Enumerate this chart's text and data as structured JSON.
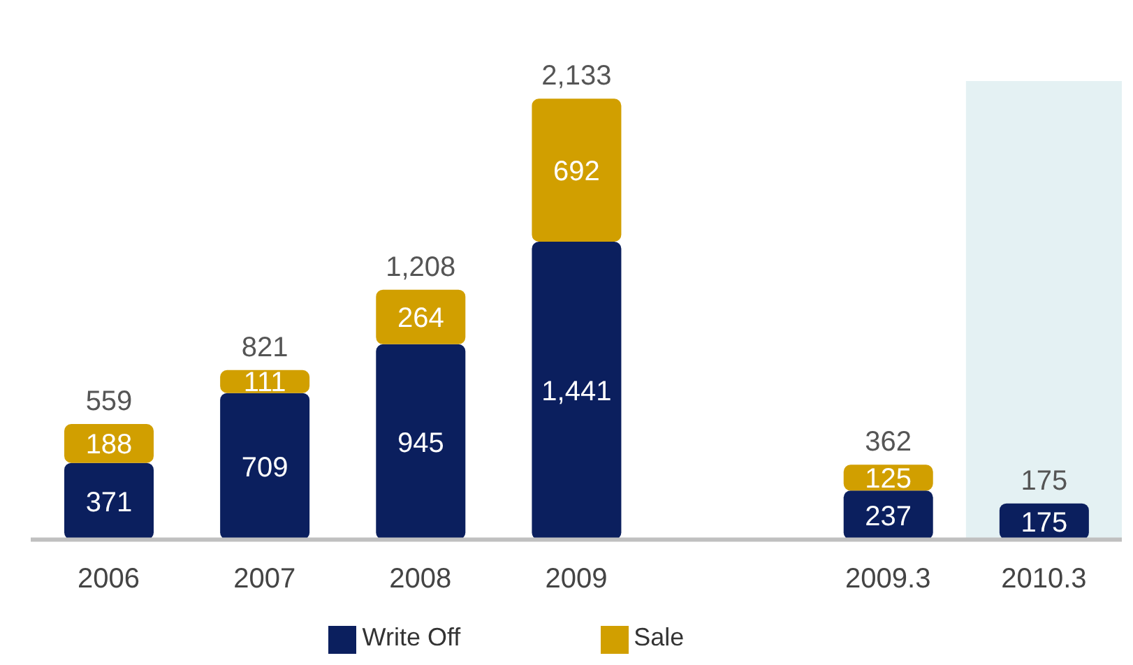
{
  "chart_data": {
    "type": "bar",
    "stacked": true,
    "categories": [
      "2006",
      "2007",
      "2008",
      "2009",
      null,
      "2009.3",
      "2010.3"
    ],
    "series": [
      {
        "name": "Write Off",
        "color": "#0b1f5e",
        "values": [
          371,
          709,
          945,
          1441,
          null,
          237,
          175
        ],
        "value_labels": [
          "371",
          "709",
          "945",
          "1,441",
          null,
          "237",
          "175"
        ]
      },
      {
        "name": "Sale",
        "color": "#d19f00",
        "values": [
          188,
          111,
          264,
          692,
          null,
          125,
          null
        ],
        "value_labels": [
          "188",
          "111",
          "264",
          "692",
          null,
          "125",
          null
        ]
      }
    ],
    "totals": [
      "559",
      "821",
      "1,208",
      "2,133",
      null,
      "362",
      "175"
    ],
    "legend": "bottom",
    "bands": [
      {
        "axis": "x",
        "from": "2010.3",
        "to": "2010.3",
        "color": "#e4f1f3"
      }
    ]
  }
}
